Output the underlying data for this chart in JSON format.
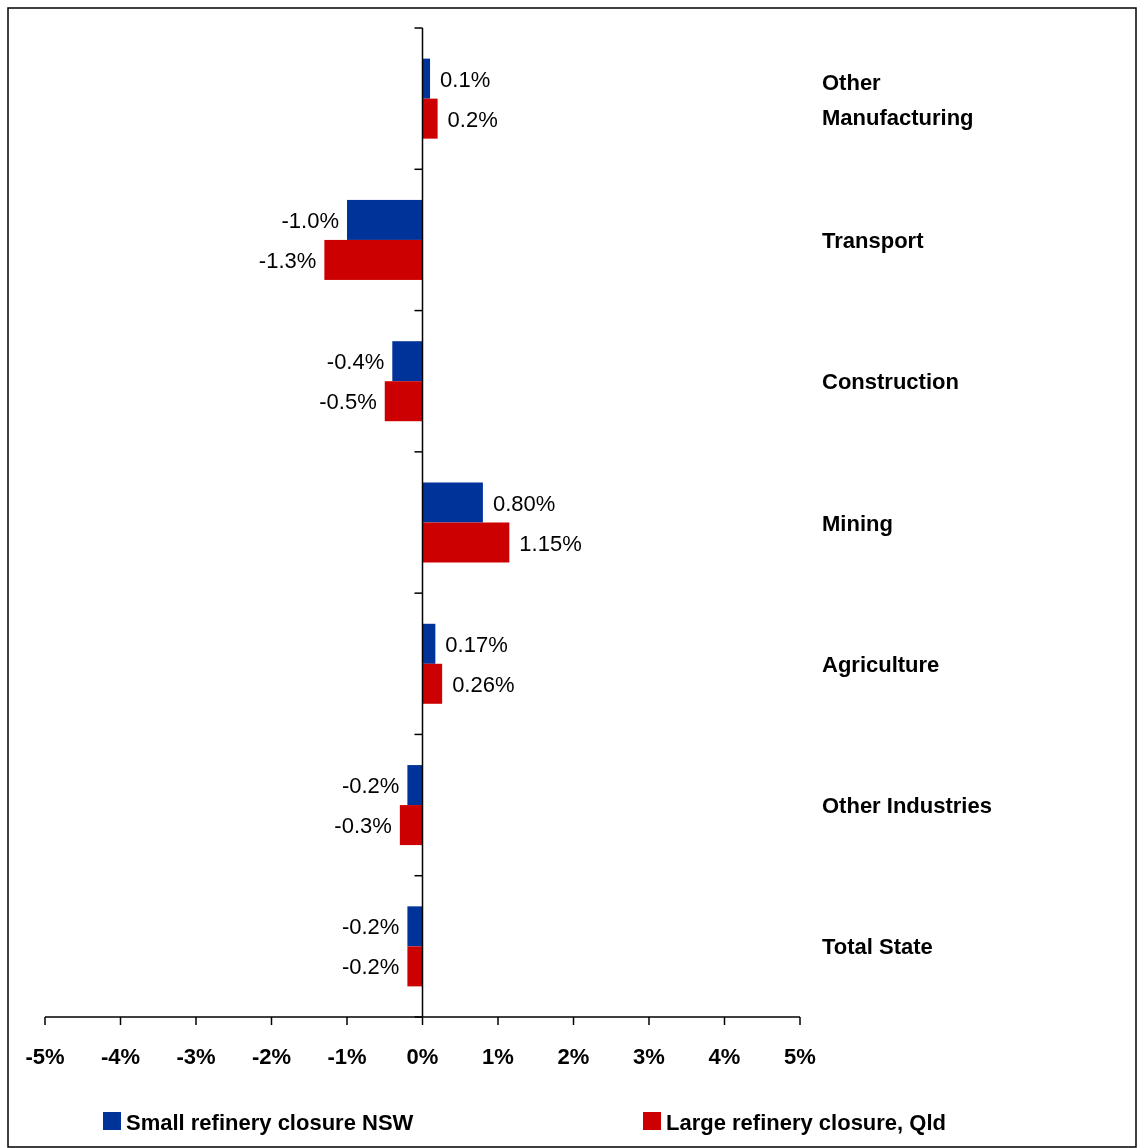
{
  "chart_data": {
    "type": "bar",
    "orientation": "horizontal",
    "categories": [
      "Other Manufacturing",
      "Transport",
      "Construction",
      "Mining",
      "Agriculture",
      "Other Industries",
      "Total State"
    ],
    "series": [
      {
        "name": "Small refinery closure NSW",
        "color": "#003399",
        "values": [
          0.1,
          -1.0,
          -0.4,
          0.8,
          0.17,
          -0.2,
          -0.2
        ],
        "value_labels": [
          "0.1%",
          "-1.0%",
          "-0.4%",
          "0.80%",
          "0.17%",
          "-0.2%",
          "-0.2%"
        ]
      },
      {
        "name": "Large refinery closure, Qld",
        "color": "#cc0000",
        "values": [
          0.2,
          -1.3,
          -0.5,
          1.15,
          0.26,
          -0.3,
          -0.2
        ],
        "value_labels": [
          "0.2%",
          "-1.3%",
          "-0.5%",
          "1.15%",
          "0.26%",
          "-0.3%",
          "-0.2%"
        ]
      }
    ],
    "xlim": [
      -5,
      5
    ],
    "xticks": [
      {
        "value": -5,
        "label": "-5%"
      },
      {
        "value": -4,
        "label": "-4%"
      },
      {
        "value": -3,
        "label": "-3%"
      },
      {
        "value": -2,
        "label": "-2%"
      },
      {
        "value": -1,
        "label": "-1%"
      },
      {
        "value": 0,
        "label": "0%"
      },
      {
        "value": 1,
        "label": "1%"
      },
      {
        "value": 2,
        "label": "2%"
      },
      {
        "value": 3,
        "label": "3%"
      },
      {
        "value": 4,
        "label": "4%"
      },
      {
        "value": 5,
        "label": "5%"
      }
    ],
    "legend": "bottom"
  }
}
